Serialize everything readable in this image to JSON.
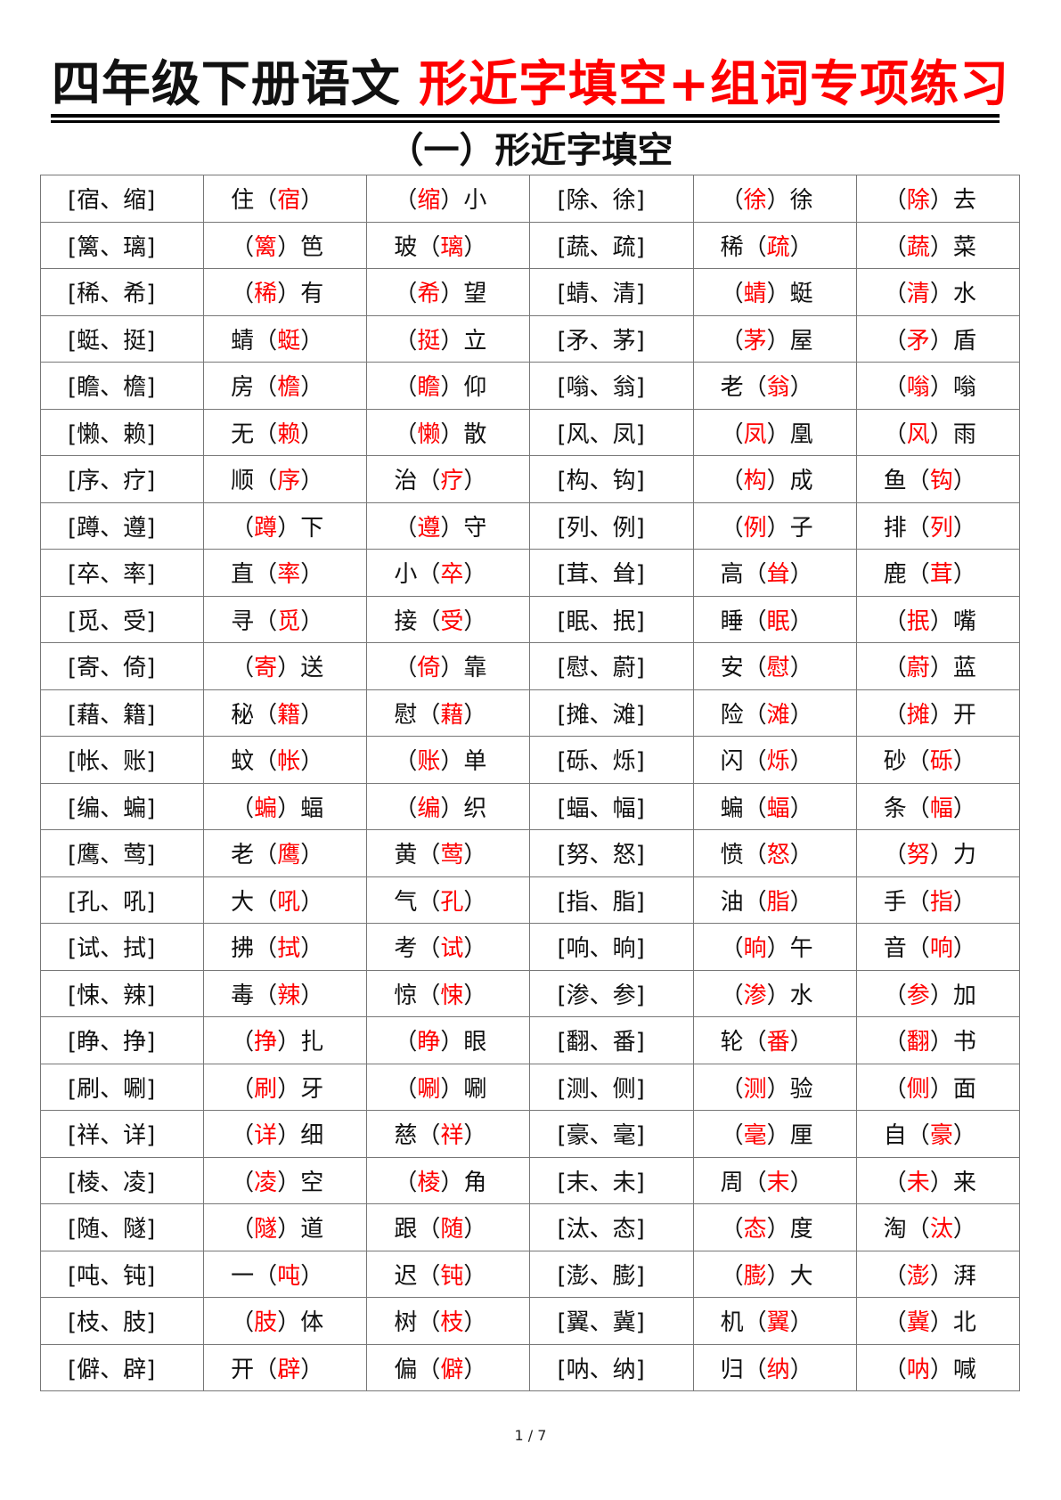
{
  "header": {
    "title_black": "四年级下册语文",
    "title_red": "形近字填空+组词专项练习",
    "subtitle": "（一）形近字填空"
  },
  "colors": {
    "answer": "#ff0000",
    "text": "#111111"
  },
  "rows": [
    [
      {
        "t": "[宿、缩]"
      },
      {
        "p": "住",
        "a": "宿",
        "s": ""
      },
      {
        "p": "",
        "a": "缩",
        "s": "小"
      },
      {
        "t": "[除、徐]"
      },
      {
        "p": "",
        "a": "徐",
        "s": "徐"
      },
      {
        "p": "",
        "a": "除",
        "s": "去"
      }
    ],
    [
      {
        "t": "[篱、璃]"
      },
      {
        "p": "",
        "a": "篱",
        "s": "笆"
      },
      {
        "p": "玻",
        "a": "璃",
        "s": ""
      },
      {
        "t": "[蔬、疏]"
      },
      {
        "p": "稀",
        "a": "疏",
        "s": ""
      },
      {
        "p": "",
        "a": "蔬",
        "s": "菜"
      }
    ],
    [
      {
        "t": "[稀、希]"
      },
      {
        "p": "",
        "a": "稀",
        "s": "有"
      },
      {
        "p": "",
        "a": "希",
        "s": "望"
      },
      {
        "t": "[蜻、清]"
      },
      {
        "p": "",
        "a": "蜻",
        "s": "蜓"
      },
      {
        "p": "",
        "a": "清",
        "s": "水"
      }
    ],
    [
      {
        "t": "[蜓、挺]"
      },
      {
        "p": "蜻",
        "a": "蜓",
        "s": ""
      },
      {
        "p": "",
        "a": "挺",
        "s": "立"
      },
      {
        "t": "[矛、茅]"
      },
      {
        "p": "",
        "a": "茅",
        "s": "屋"
      },
      {
        "p": "",
        "a": "矛",
        "s": "盾"
      }
    ],
    [
      {
        "t": "[瞻、檐]"
      },
      {
        "p": "房",
        "a": "檐",
        "s": ""
      },
      {
        "p": "",
        "a": "瞻",
        "s": "仰"
      },
      {
        "t": "[嗡、翁]"
      },
      {
        "p": "老",
        "a": "翁",
        "s": ""
      },
      {
        "p": "",
        "a": "嗡",
        "s": "嗡"
      }
    ],
    [
      {
        "t": "[懒、赖]"
      },
      {
        "p": "无",
        "a": "赖",
        "s": ""
      },
      {
        "p": "",
        "a": "懒",
        "s": "散"
      },
      {
        "t": "[风、凤]"
      },
      {
        "p": "",
        "a": "凤",
        "s": "凰"
      },
      {
        "p": "",
        "a": "风",
        "s": "雨"
      }
    ],
    [
      {
        "t": "[序、疗]"
      },
      {
        "p": "顺",
        "a": "序",
        "s": ""
      },
      {
        "p": "治",
        "a": "疗",
        "s": ""
      },
      {
        "t": "[构、钩]"
      },
      {
        "p": "",
        "a": "构",
        "s": "成"
      },
      {
        "p": "鱼",
        "a": "钩",
        "s": ""
      }
    ],
    [
      {
        "t": "[蹲、遵]"
      },
      {
        "p": "",
        "a": "蹲",
        "s": "下"
      },
      {
        "p": "",
        "a": "遵",
        "s": "守"
      },
      {
        "t": "[列、例]"
      },
      {
        "p": "",
        "a": "例",
        "s": "子"
      },
      {
        "p": "排",
        "a": "列",
        "s": ""
      }
    ],
    [
      {
        "t": "[卒、率]"
      },
      {
        "p": "直",
        "a": "率",
        "s": ""
      },
      {
        "p": "小",
        "a": "卒",
        "s": ""
      },
      {
        "t": "[茸、耸]"
      },
      {
        "p": "高",
        "a": "耸",
        "s": ""
      },
      {
        "p": "鹿",
        "a": "茸",
        "s": ""
      }
    ],
    [
      {
        "t": "[觅、受]"
      },
      {
        "p": "寻",
        "a": "觅",
        "s": ""
      },
      {
        "p": "接",
        "a": "受",
        "s": ""
      },
      {
        "t": "[眠、抿]"
      },
      {
        "p": "睡",
        "a": "眠",
        "s": ""
      },
      {
        "p": "",
        "a": "抿",
        "s": "嘴"
      }
    ],
    [
      {
        "t": "[寄、倚]"
      },
      {
        "p": "",
        "a": "寄",
        "s": "送"
      },
      {
        "p": "",
        "a": "倚",
        "s": "靠"
      },
      {
        "t": "[慰、蔚]"
      },
      {
        "p": "安",
        "a": "慰",
        "s": ""
      },
      {
        "p": "",
        "a": "蔚",
        "s": "蓝"
      }
    ],
    [
      {
        "t": "[藉、籍]"
      },
      {
        "p": "秘",
        "a": "籍",
        "s": ""
      },
      {
        "p": "慰",
        "a": "藉",
        "s": ""
      },
      {
        "t": "[摊、滩]"
      },
      {
        "p": "险",
        "a": "滩",
        "s": ""
      },
      {
        "p": "",
        "a": "摊",
        "s": "开"
      }
    ],
    [
      {
        "t": "[帐、账]"
      },
      {
        "p": "蚊",
        "a": "帐",
        "s": ""
      },
      {
        "p": "",
        "a": "账",
        "s": "单"
      },
      {
        "t": "[砾、烁]"
      },
      {
        "p": "闪",
        "a": "烁",
        "s": ""
      },
      {
        "p": "砂",
        "a": "砾",
        "s": ""
      }
    ],
    [
      {
        "t": "[编、蝙]"
      },
      {
        "p": "",
        "a": "蝙",
        "s": "蝠"
      },
      {
        "p": "",
        "a": "编",
        "s": "织"
      },
      {
        "t": "[蝠、幅]"
      },
      {
        "p": "蝙",
        "a": "蝠",
        "s": ""
      },
      {
        "p": "条",
        "a": "幅",
        "s": ""
      }
    ],
    [
      {
        "t": "[鹰、莺]"
      },
      {
        "p": "老",
        "a": "鹰",
        "s": ""
      },
      {
        "p": "黄",
        "a": "莺",
        "s": ""
      },
      {
        "t": "[努、怒]"
      },
      {
        "p": "愤",
        "a": "怒",
        "s": ""
      },
      {
        "p": "",
        "a": "努",
        "s": "力"
      }
    ],
    [
      {
        "t": "[孔、吼]"
      },
      {
        "p": "大",
        "a": "吼",
        "s": ""
      },
      {
        "p": "气",
        "a": "孔",
        "s": ""
      },
      {
        "t": "[指、脂]"
      },
      {
        "p": "油",
        "a": "脂",
        "s": ""
      },
      {
        "p": "手",
        "a": "指",
        "s": ""
      }
    ],
    [
      {
        "t": "[试、拭]"
      },
      {
        "p": "拂",
        "a": "拭",
        "s": ""
      },
      {
        "p": "考",
        "a": "试",
        "s": ""
      },
      {
        "t": "[响、晌]"
      },
      {
        "p": "",
        "a": "晌",
        "s": "午"
      },
      {
        "p": "音",
        "a": "响",
        "s": ""
      }
    ],
    [
      {
        "t": "[悚、辣]"
      },
      {
        "p": "毒",
        "a": "辣",
        "s": ""
      },
      {
        "p": "惊",
        "a": "悚",
        "s": ""
      },
      {
        "t": "[渗、参]"
      },
      {
        "p": "",
        "a": "渗",
        "s": "水"
      },
      {
        "p": "",
        "a": "参",
        "s": "加"
      }
    ],
    [
      {
        "t": "[睁、挣]"
      },
      {
        "p": "",
        "a": "挣",
        "s": "扎"
      },
      {
        "p": "",
        "a": "睁",
        "s": "眼"
      },
      {
        "t": "[翻、番]"
      },
      {
        "p": "轮",
        "a": "番",
        "s": ""
      },
      {
        "p": "",
        "a": "翻",
        "s": "书"
      }
    ],
    [
      {
        "t": "[刷、唰]"
      },
      {
        "p": "",
        "a": "刷",
        "s": "牙"
      },
      {
        "p": "",
        "a": "唰",
        "s": "唰"
      },
      {
        "t": "[测、侧]"
      },
      {
        "p": "",
        "a": "测",
        "s": "验"
      },
      {
        "p": "",
        "a": "侧",
        "s": "面"
      }
    ],
    [
      {
        "t": "[祥、详]"
      },
      {
        "p": "",
        "a": "详",
        "s": "细"
      },
      {
        "p": "慈",
        "a": "祥",
        "s": ""
      },
      {
        "t": "[豪、毫]"
      },
      {
        "p": "",
        "a": "毫",
        "s": "厘"
      },
      {
        "p": "自",
        "a": "豪",
        "s": ""
      }
    ],
    [
      {
        "t": "[棱、凌]"
      },
      {
        "p": "",
        "a": "凌",
        "s": "空"
      },
      {
        "p": "",
        "a": "棱",
        "s": "角"
      },
      {
        "t": "[末、未]"
      },
      {
        "p": "周",
        "a": "末",
        "s": ""
      },
      {
        "p": "",
        "a": "未",
        "s": "来"
      }
    ],
    [
      {
        "t": "[随、隧]"
      },
      {
        "p": "",
        "a": "隧",
        "s": "道"
      },
      {
        "p": "跟",
        "a": "随",
        "s": ""
      },
      {
        "t": "[汰、态]"
      },
      {
        "p": "",
        "a": "态",
        "s": "度"
      },
      {
        "p": "淘",
        "a": "汰",
        "s": ""
      }
    ],
    [
      {
        "t": "[吨、钝]"
      },
      {
        "p": "一",
        "a": "吨",
        "s": ""
      },
      {
        "p": "迟",
        "a": "钝",
        "s": ""
      },
      {
        "t": "[澎、膨]"
      },
      {
        "p": "",
        "a": "膨",
        "s": "大"
      },
      {
        "p": "",
        "a": "澎",
        "s": "湃"
      }
    ],
    [
      {
        "t": "[枝、肢]"
      },
      {
        "p": "",
        "a": "肢",
        "s": "体"
      },
      {
        "p": "树",
        "a": "枝",
        "s": ""
      },
      {
        "t": "[翼、冀]"
      },
      {
        "p": "机",
        "a": "翼",
        "s": ""
      },
      {
        "p": "",
        "a": "冀",
        "s": "北"
      }
    ],
    [
      {
        "t": "[僻、辟]"
      },
      {
        "p": "开",
        "a": "辟",
        "s": ""
      },
      {
        "p": "偏",
        "a": "僻",
        "s": ""
      },
      {
        "t": "[呐、纳]"
      },
      {
        "p": "归",
        "a": "纳",
        "s": ""
      },
      {
        "p": "",
        "a": "呐",
        "s": "喊"
      }
    ]
  ],
  "footer": {
    "page": "1 / 7"
  }
}
